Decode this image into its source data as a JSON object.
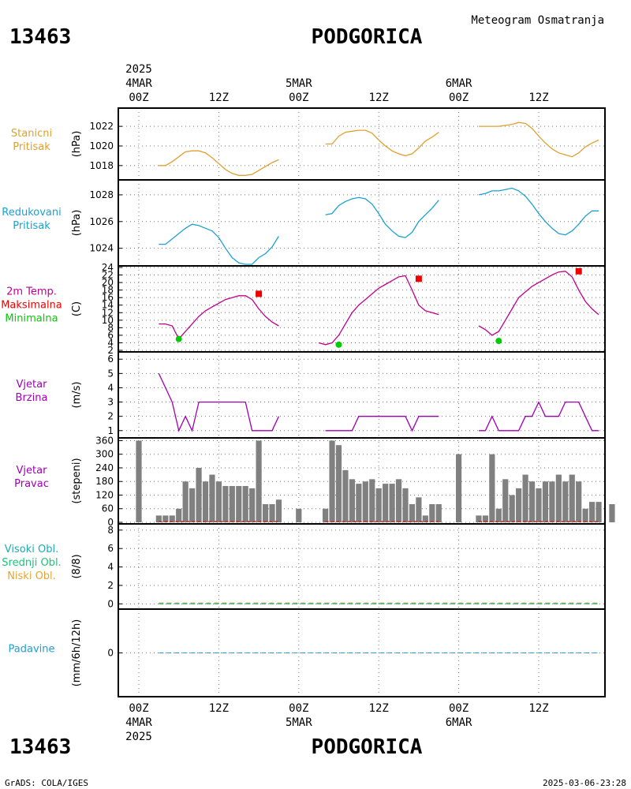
{
  "header": {
    "station_id": "13463",
    "station_name": "PODGORICA",
    "subtitle": "Meteogram Osmatranja"
  },
  "footer": {
    "station_id": "13463",
    "station_name": "PODGORICA",
    "credit": "GrADS: COLA/IGES",
    "timestamp": "2025-03-06-23:28"
  },
  "time_axis": {
    "year": "2025",
    "ticks": [
      {
        "hour": 0,
        "label": "00Z",
        "date": "4MAR"
      },
      {
        "hour": 12,
        "label": "12Z"
      },
      {
        "hour": 24,
        "label": "00Z",
        "date": "5MAR"
      },
      {
        "hour": 36,
        "label": "12Z"
      },
      {
        "hour": 48,
        "label": "00Z",
        "date": "6MAR"
      },
      {
        "hour": 60,
        "label": "12Z"
      }
    ]
  },
  "colors": {
    "station_pressure": "#e0a030",
    "reduced_pressure": "#1ea0d2",
    "temperature": "#c0008c",
    "tmax": "#ee0000",
    "tmin": "#00cc00",
    "wind_speed": "#a000b4",
    "wind_dir_bar": "#808080",
    "wind_dir_base": "#c0392b",
    "cloud_high": "#1eaab4",
    "cloud_mid": "#14c878",
    "cloud_low": "#e6a532",
    "precip": "#1ea0d2",
    "label_wind": "#a000b4"
  },
  "chart_data": [
    {
      "type": "line",
      "panel": "station_pressure",
      "label_lines": [
        "Stanicni",
        "Pritisak"
      ],
      "ylabel": "(hPa)",
      "ylim": [
        1016.7,
        1023.7
      ],
      "yticks": [
        1018,
        1020,
        1022
      ],
      "series": [
        {
          "segments": [
            {
              "x": [
                3,
                4,
                5,
                6,
                7,
                8,
                9,
                10,
                11,
                12,
                13,
                14,
                15,
                16,
                17,
                18,
                19,
                20,
                21
              ],
              "y": [
                1018.0,
                1018.0,
                1018.4,
                1018.9,
                1019.4,
                1019.5,
                1019.5,
                1019.3,
                1018.8,
                1018.2,
                1017.6,
                1017.2,
                1017.0,
                1017.0,
                1017.1,
                1017.5,
                1017.9,
                1018.3,
                1018.6
              ]
            },
            {
              "x": [
                28,
                29,
                30,
                31,
                32,
                33,
                34,
                35,
                36,
                37,
                38,
                39,
                40,
                41,
                42,
                43,
                44,
                45
              ],
              "y": [
                1020.2,
                1020.2,
                1021.0,
                1021.4,
                1021.5,
                1021.6,
                1021.6,
                1021.3,
                1020.6,
                1020.0,
                1019.5,
                1019.2,
                1019.0,
                1019.2,
                1019.8,
                1020.5,
                1020.9,
                1021.4
              ]
            },
            {
              "x": [
                51,
                52,
                53,
                54,
                55,
                56,
                57,
                58,
                59,
                60,
                61,
                62,
                63,
                64,
                65,
                66,
                67,
                68,
                69
              ],
              "y": [
                1022.0,
                1022.0,
                1022.0,
                1022.0,
                1022.1,
                1022.2,
                1022.4,
                1022.3,
                1021.8,
                1021.0,
                1020.3,
                1019.7,
                1019.3,
                1019.1,
                1018.9,
                1019.3,
                1019.9,
                1020.3,
                1020.6
              ]
            }
          ]
        }
      ]
    },
    {
      "type": "line",
      "panel": "reduced_pressure",
      "label_lines": [
        "Redukovani",
        "Pritisak"
      ],
      "ylabel": "(hPa)",
      "ylim": [
        1022.8,
        1029.0
      ],
      "yticks": [
        1024,
        1026,
        1028
      ],
      "series": [
        {
          "segments": [
            {
              "x": [
                3,
                4,
                5,
                6,
                7,
                8,
                9,
                10,
                11,
                12,
                13,
                14,
                15,
                16,
                17,
                18,
                19,
                20,
                21
              ],
              "y": [
                1024.3,
                1024.3,
                1024.7,
                1025.1,
                1025.5,
                1025.8,
                1025.7,
                1025.5,
                1025.3,
                1024.8,
                1024.0,
                1023.3,
                1022.9,
                1022.8,
                1022.8,
                1023.3,
                1023.6,
                1024.1,
                1024.9
              ]
            },
            {
              "x": [
                28,
                29,
                30,
                31,
                32,
                33,
                34,
                35,
                36,
                37,
                38,
                39,
                40,
                41,
                42,
                43,
                44,
                45
              ],
              "y": [
                1026.5,
                1026.6,
                1027.2,
                1027.5,
                1027.7,
                1027.8,
                1027.7,
                1027.3,
                1026.6,
                1025.8,
                1025.3,
                1024.9,
                1024.8,
                1025.2,
                1026.0,
                1026.5,
                1027.0,
                1027.6
              ]
            },
            {
              "x": [
                51,
                52,
                53,
                54,
                55,
                56,
                57,
                58,
                59,
                60,
                61,
                62,
                63,
                64,
                65,
                66,
                67,
                68,
                69
              ],
              "y": [
                1028.0,
                1028.1,
                1028.3,
                1028.3,
                1028.4,
                1028.5,
                1028.3,
                1027.9,
                1027.3,
                1026.6,
                1026.0,
                1025.5,
                1025.1,
                1025.0,
                1025.3,
                1025.8,
                1026.4,
                1026.8,
                1026.8
              ]
            }
          ]
        }
      ]
    },
    {
      "type": "line",
      "panel": "temperature",
      "label_lines": [
        "2m Temp.",
        "Maksimalna",
        "Minimalna"
      ],
      "ylabel": "(C)",
      "ylim": [
        2,
        24
      ],
      "yticks": [
        2,
        4,
        6,
        8,
        10,
        12,
        14,
        16,
        18,
        20,
        22,
        24
      ],
      "series": [
        {
          "segments": [
            {
              "x": [
                3,
                4,
                5,
                6,
                7,
                8,
                9,
                10,
                11,
                12,
                13,
                14,
                15,
                16,
                17,
                18,
                19,
                20,
                21
              ],
              "y": [
                9,
                9,
                8.5,
                5,
                7,
                9,
                11,
                12.5,
                13.5,
                14.5,
                15.5,
                16,
                16.5,
                16.5,
                15.5,
                13,
                11,
                9.5,
                8.5
              ]
            },
            {
              "x": [
                27,
                28,
                29,
                30,
                31,
                32,
                33,
                34,
                35,
                36,
                37,
                38,
                39,
                40,
                41,
                42,
                43,
                44,
                45
              ],
              "y": [
                4,
                3.5,
                4,
                6,
                9,
                12,
                14,
                15.5,
                17,
                18.5,
                19.5,
                20.5,
                21.5,
                21.8,
                18,
                14,
                12.5,
                12,
                11.5
              ]
            },
            {
              "x": [
                51,
                52,
                53,
                54,
                55,
                56,
                57,
                58,
                59,
                60,
                61,
                62,
                63,
                64,
                65,
                66,
                67,
                68,
                69
              ],
              "y": [
                8.5,
                7.5,
                6,
                7,
                10,
                13,
                16,
                17.5,
                19,
                20,
                21,
                22,
                22.8,
                23,
                21.5,
                18,
                15,
                13,
                11.5
              ]
            }
          ]
        }
      ],
      "tmax_points": [
        {
          "x": 18,
          "y": 17
        },
        {
          "x": 42,
          "y": 21
        },
        {
          "x": 66,
          "y": 23
        }
      ],
      "tmin_points": [
        {
          "x": 6,
          "y": 5
        },
        {
          "x": 30,
          "y": 3.5
        },
        {
          "x": 54,
          "y": 4.5
        }
      ]
    },
    {
      "type": "line",
      "panel": "wind_speed",
      "label_lines": [
        "Vjetar",
        "Brzina"
      ],
      "ylabel": "(m/s)",
      "ylim": [
        0.6,
        6.4
      ],
      "yticks": [
        1,
        2,
        3,
        4,
        5,
        6
      ],
      "series": [
        {
          "segments": [
            {
              "x": [
                3,
                4,
                5,
                6,
                7,
                8,
                9,
                10,
                11,
                12,
                13,
                14,
                15,
                16,
                17,
                18,
                19,
                20,
                21
              ],
              "y": [
                5,
                4,
                3,
                1,
                2,
                1,
                3,
                3,
                3,
                3,
                3,
                3,
                3,
                3,
                1,
                1,
                1,
                1,
                2
              ]
            },
            {
              "x": [
                28,
                29,
                30,
                31,
                32,
                33,
                34,
                35,
                36,
                37,
                38,
                39,
                40,
                41,
                42,
                43,
                44,
                45
              ],
              "y": [
                1,
                1,
                1,
                1,
                1,
                2,
                2,
                2,
                2,
                2,
                2,
                2,
                2,
                1,
                2,
                2,
                2,
                2
              ]
            },
            {
              "x": [
                51,
                52,
                53,
                54,
                55,
                56,
                57,
                58,
                59,
                60,
                61,
                62,
                63,
                64,
                65,
                66,
                67,
                68,
                69
              ],
              "y": [
                1,
                1,
                2,
                1,
                1,
                1,
                1,
                2,
                2,
                3,
                2,
                2,
                2,
                3,
                3,
                3,
                2,
                1,
                1
              ]
            }
          ]
        }
      ]
    },
    {
      "type": "bar",
      "panel": "wind_direction",
      "label_lines": [
        "Vjetar",
        "Pravac"
      ],
      "ylabel": "(stepeni)",
      "ylim": [
        0,
        365
      ],
      "yticks": [
        0,
        60,
        120,
        180,
        240,
        300,
        360
      ],
      "x": [
        0,
        3,
        4,
        5,
        6,
        7,
        8,
        9,
        10,
        11,
        12,
        13,
        14,
        15,
        16,
        17,
        18,
        19,
        20,
        21,
        24,
        28,
        29,
        30,
        31,
        32,
        33,
        34,
        35,
        36,
        37,
        38,
        39,
        40,
        41,
        42,
        43,
        44,
        45,
        48,
        51,
        52,
        53,
        54,
        55,
        56,
        57,
        58,
        59,
        60,
        61,
        62,
        63,
        64,
        65,
        66,
        67,
        68,
        69,
        71
      ],
      "values": [
        360,
        30,
        30,
        30,
        60,
        180,
        150,
        240,
        180,
        210,
        180,
        160,
        160,
        160,
        160,
        150,
        360,
        80,
        80,
        100,
        60,
        60,
        360,
        340,
        230,
        190,
        170,
        180,
        190,
        150,
        170,
        170,
        190,
        150,
        80,
        110,
        30,
        80,
        80,
        300,
        30,
        30,
        300,
        60,
        190,
        120,
        150,
        210,
        180,
        150,
        180,
        180,
        210,
        180,
        210,
        180,
        60,
        90,
        90,
        80
      ]
    },
    {
      "type": "line",
      "panel": "clouds",
      "label_lines": [
        "Visoki Obl.",
        "Srednji Obl.",
        "Niski Obl."
      ],
      "ylabel": "(8/8)",
      "ylim": [
        -0.4,
        8.5
      ],
      "yticks": [
        0,
        2,
        4,
        6,
        8
      ],
      "series": [
        {
          "name": "Visoki Obl.",
          "value": 0
        },
        {
          "name": "Srednji Obl.",
          "value": 0
        },
        {
          "name": "Niski Obl.",
          "value": 0
        }
      ]
    },
    {
      "type": "line",
      "panel": "precipitation",
      "label_lines": [
        "Padavine"
      ],
      "ylabel": "(mm/6h/12h)",
      "ylim": [
        -5,
        5
      ],
      "yticks": [
        0
      ],
      "series": [
        {
          "value": 0
        }
      ]
    }
  ]
}
